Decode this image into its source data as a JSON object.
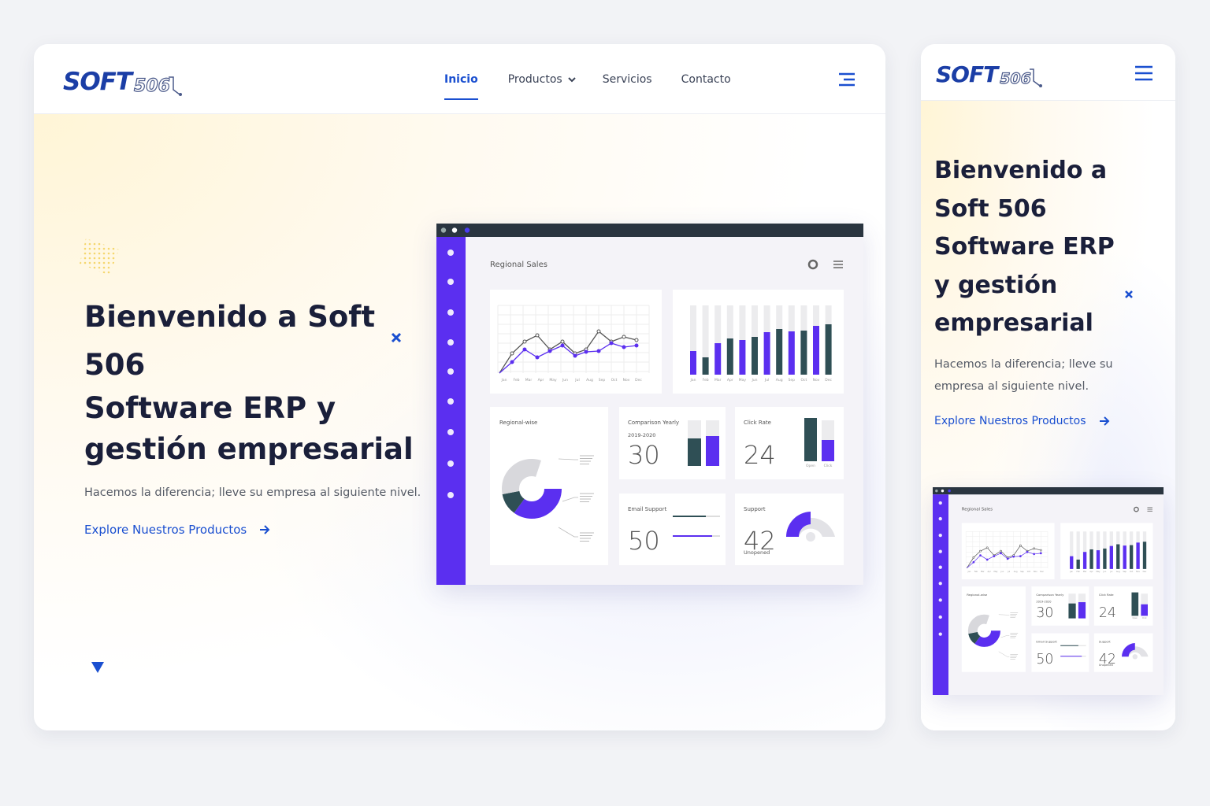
{
  "logo": {
    "main": "SOFT",
    "accent": "506"
  },
  "nav": {
    "items": [
      "Inicio",
      "Productos",
      "Servicios",
      "Contacto"
    ]
  },
  "hero": {
    "title_lines": [
      "Bienvenido a Soft 506",
      "Software ERP y",
      "gestión empresarial"
    ],
    "subtitle": "Hacemos la diferencia; lleve su empresa al siguiente nivel.",
    "cta": "Explore Nuestros Productos"
  },
  "dashboard": {
    "title": "Regional Sales",
    "months": [
      "Jan",
      "Feb",
      "Mar",
      "Apr",
      "May",
      "Jun",
      "Jul",
      "Aug",
      "Sep",
      "Oct",
      "Nov",
      "Dec"
    ],
    "regional_title": "Regional-wise",
    "cards": [
      {
        "title": "Comparison Yearly",
        "subtitle": "2019-2020",
        "value": 30
      },
      {
        "title": "Click Rate",
        "value": 24,
        "labels": [
          "Open",
          "Click"
        ]
      },
      {
        "title": "Email Support",
        "value": 50
      },
      {
        "title": "Support",
        "value": 42,
        "subtitle": "Unopened"
      }
    ]
  }
}
